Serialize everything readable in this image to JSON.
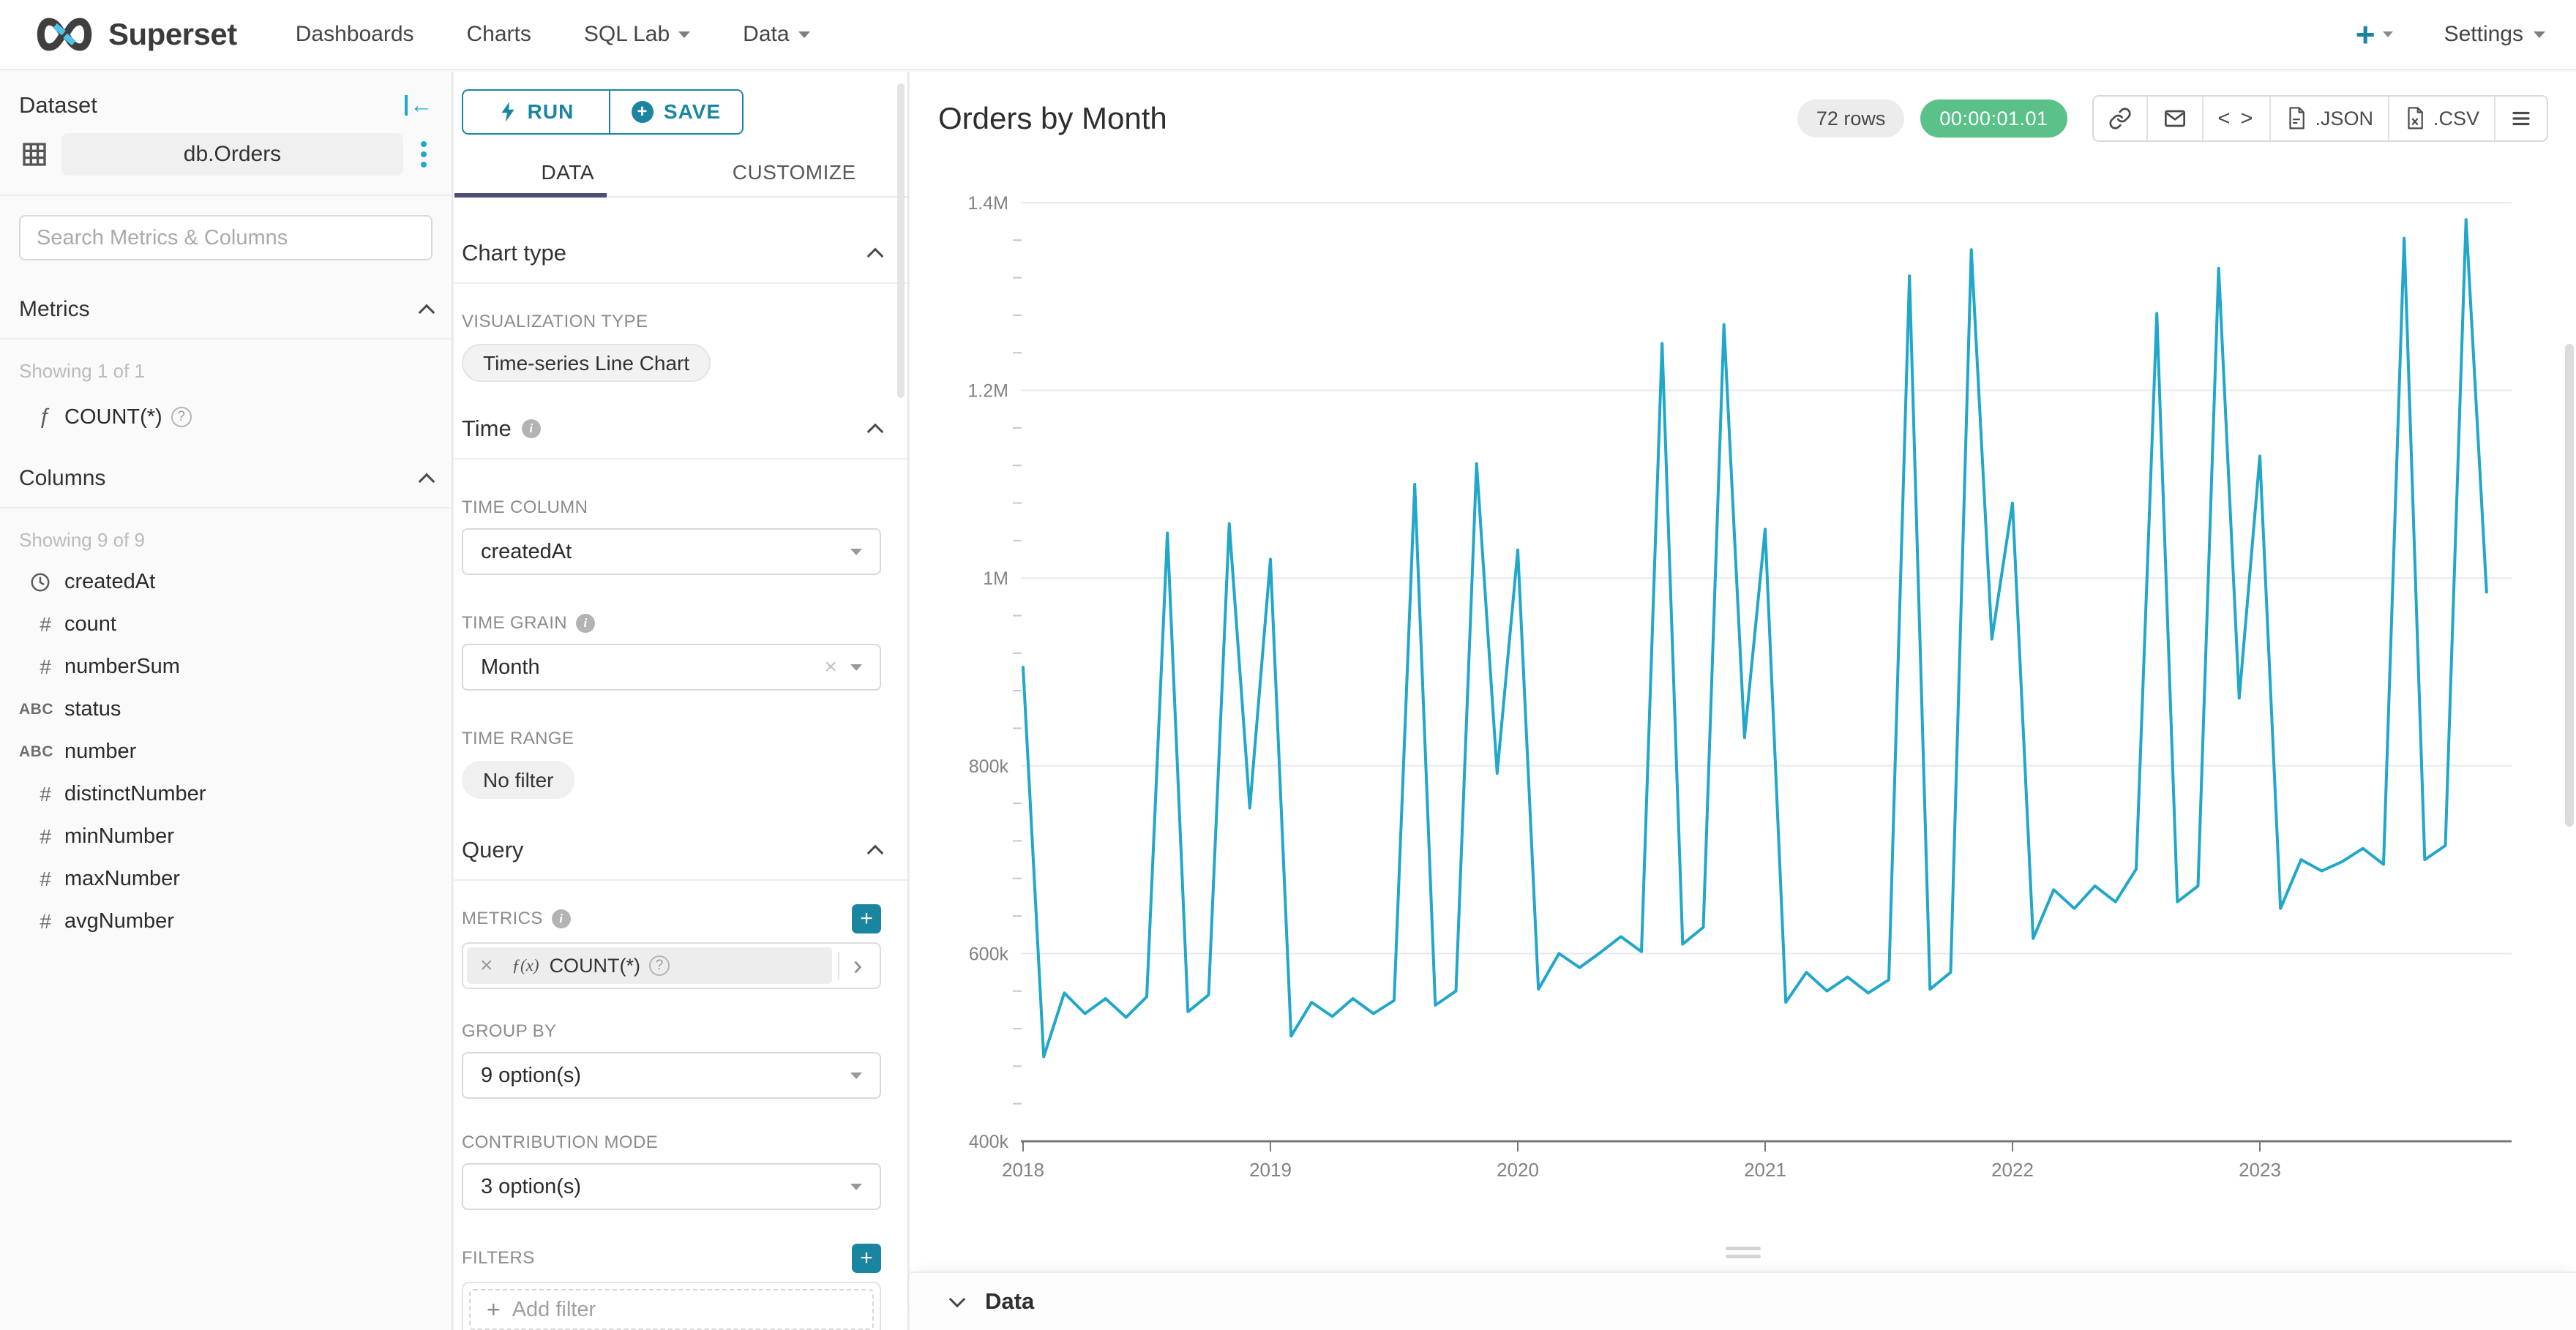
{
  "navbar": {
    "brand": "Superset",
    "items": [
      {
        "label": "Dashboards",
        "caret": false
      },
      {
        "label": "Charts",
        "caret": false
      },
      {
        "label": "SQL Lab",
        "caret": true
      },
      {
        "label": "Data",
        "caret": true
      }
    ],
    "new_label": "+",
    "settings_label": "Settings"
  },
  "sidebar": {
    "title": "Dataset",
    "dataset_name": "db.Orders",
    "search_placeholder": "Search Metrics & Columns",
    "metrics": {
      "header": "Metrics",
      "showing": "Showing 1 of 1",
      "items": [
        {
          "icon": "function-icon",
          "label": "COUNT(*)"
        }
      ]
    },
    "columns": {
      "header": "Columns",
      "showing": "Showing 9 of 9",
      "items": [
        {
          "type": "time",
          "label": "createdAt"
        },
        {
          "type": "num",
          "label": "count"
        },
        {
          "type": "num",
          "label": "numberSum"
        },
        {
          "type": "str",
          "label": "status"
        },
        {
          "type": "str",
          "label": "number"
        },
        {
          "type": "num",
          "label": "distinctNumber"
        },
        {
          "type": "num",
          "label": "minNumber"
        },
        {
          "type": "num",
          "label": "maxNumber"
        },
        {
          "type": "num",
          "label": "avgNumber"
        }
      ]
    }
  },
  "controls": {
    "run_label": "RUN",
    "save_label": "SAVE",
    "tabs": [
      "DATA",
      "CUSTOMIZE"
    ],
    "active_tab": "DATA",
    "chart_type": {
      "header": "Chart type",
      "viz_label": "VISUALIZATION TYPE",
      "viz_value": "Time-series Line Chart"
    },
    "time": {
      "header": "Time",
      "time_column_label": "TIME COLUMN",
      "time_column": "createdAt",
      "time_grain_label": "TIME GRAIN",
      "time_grain": "Month",
      "time_range_label": "TIME RANGE",
      "time_range": "No filter"
    },
    "query": {
      "header": "Query",
      "metrics_label": "METRICS",
      "metric_fx": "ƒ(x)",
      "metric_chip": "COUNT(*)",
      "group_by_label": "GROUP BY",
      "group_by": "9 option(s)",
      "contribution_label": "CONTRIBUTION MODE",
      "contribution": "3 option(s)",
      "filters_label": "FILTERS",
      "add_filter": "Add filter"
    }
  },
  "chart_panel": {
    "title": "Orders by Month",
    "rows_badge": "72 rows",
    "timer_badge": "00:00:01.01",
    "export_json": ".JSON",
    "export_csv": ".CSV",
    "data_section": "Data"
  },
  "icons": {
    "left_arrow": "←",
    "close": "×",
    "chevron_right": "›",
    "function": "ƒ",
    "hash": "#",
    "abc": "ABC",
    "code": "< >",
    "plus": "+"
  },
  "colors": {
    "accent_teal": "#20A7C9",
    "button_teal": "#1A85A0",
    "success_green": "#5AC189",
    "tab_ink": "#4C4F78",
    "line": "#20A7C9"
  },
  "chart_data": {
    "type": "line",
    "title": "Orders by Month",
    "metric": "COUNT(*)",
    "x_start": "2018-01",
    "x_granularity": "month",
    "series": [
      {
        "name": "COUNT(*)",
        "values": [
          905000,
          490000,
          558000,
          536000,
          552000,
          532000,
          554000,
          1048000,
          538000,
          556000,
          1058000,
          755000,
          1020000,
          512000,
          548000,
          533000,
          552000,
          536000,
          550000,
          1100000,
          545000,
          560000,
          1122000,
          792000,
          1030000,
          562000,
          600000,
          585000,
          601000,
          618000,
          602000,
          1250000,
          610000,
          628000,
          1270000,
          830000,
          1052000,
          548000,
          580000,
          560000,
          575000,
          558000,
          572000,
          1322000,
          562000,
          580000,
          1350000,
          935000,
          1080000,
          616000,
          668000,
          648000,
          672000,
          655000,
          690000,
          1282000,
          655000,
          672000,
          1330000,
          872000,
          1130000,
          648000,
          700000,
          688000,
          698000,
          712000,
          695000,
          1362000,
          700000,
          715000,
          1382000,
          985000
        ]
      }
    ],
    "xtick_labels": [
      "2018",
      "2019",
      "2020",
      "2021",
      "2022",
      "2023"
    ],
    "xtick_month_indices": [
      0,
      12,
      24,
      36,
      48,
      60
    ],
    "ytick_labels": [
      "400k",
      "600k",
      "800k",
      "1M",
      "1.2M",
      "1.4M"
    ],
    "ytick_values": [
      400000,
      600000,
      800000,
      1000000,
      1200000,
      1400000
    ],
    "ylim": [
      400000,
      1400000
    ],
    "minor_ytick_step": 40000,
    "grid": true,
    "legend": false,
    "line_color": "#20A7C9"
  }
}
